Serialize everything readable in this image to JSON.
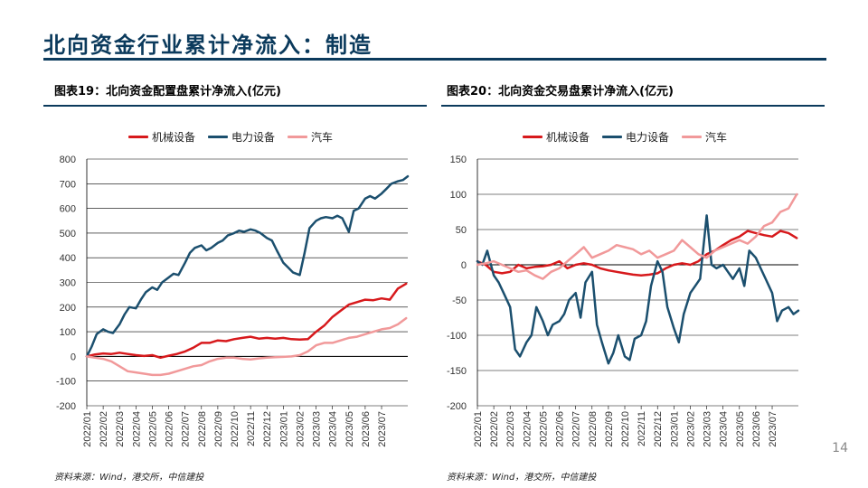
{
  "page": {
    "title": "北向资金行业累计净流入：制造",
    "page_number": "14"
  },
  "colors": {
    "theme_navy": "#0b3a5c",
    "series_red": "#d7191c",
    "series_navy": "#1b4f6e",
    "series_pink": "#f1999a"
  },
  "left": {
    "figure_title": "图表19：北向资金配置盘累计净流入(亿元)",
    "source": "资料来源：Wind，港交所，中信建投"
  },
  "right": {
    "figure_title": "图表20：北向资金交易盘累计净流入(亿元)",
    "source": "资料来源：Wind，港交所，中信建投"
  },
  "chart_data": [
    {
      "type": "line",
      "title": "图表19：北向资金配置盘累计净流入(亿元)",
      "xlabel": "",
      "ylabel": "",
      "ylim": [
        -200,
        800
      ],
      "yticks": [
        -200,
        -100,
        0,
        100,
        200,
        300,
        400,
        500,
        600,
        700,
        800
      ],
      "categories": [
        "2022/01",
        "2022/02",
        "2022/03",
        "2022/04",
        "2022/05",
        "2022/06",
        "2022/07",
        "2022/08",
        "2022/09",
        "2022/10",
        "2022/11",
        "2022/12",
        "2023/01",
        "2023/02",
        "2023/03",
        "2023/04",
        "2023/05",
        "2023/06",
        "2023/07"
      ],
      "x_range": [
        0,
        19.6
      ],
      "grid": "horizontal",
      "legend": "top",
      "series": [
        {
          "name": "机械设备",
          "color": "#d7191c",
          "x": [
            0,
            0.5,
            1,
            1.5,
            2,
            2.5,
            3,
            3.5,
            4,
            4.5,
            5,
            5.5,
            6,
            6.5,
            7,
            7.5,
            8,
            8.5,
            9,
            9.5,
            10,
            10.5,
            11,
            11.5,
            12,
            12.5,
            13,
            13.5,
            14,
            14.5,
            15,
            15.5,
            16,
            16.5,
            17,
            17.5,
            18,
            18.5,
            19,
            19.5
          ],
          "values": [
            0,
            8,
            12,
            10,
            15,
            10,
            5,
            2,
            5,
            -5,
            3,
            10,
            20,
            35,
            55,
            55,
            65,
            62,
            70,
            75,
            80,
            72,
            75,
            72,
            75,
            70,
            68,
            70,
            100,
            125,
            160,
            185,
            210,
            220,
            230,
            228,
            235,
            230,
            275,
            295
          ]
        },
        {
          "name": "电力设备",
          "color": "#1b4f6e",
          "x": [
            0,
            0.3,
            0.6,
            1,
            1.3,
            1.6,
            2,
            2.3,
            2.6,
            3,
            3.3,
            3.6,
            4,
            4.3,
            4.6,
            5,
            5.3,
            5.6,
            6,
            6.3,
            6.6,
            7,
            7.3,
            7.6,
            8,
            8.3,
            8.6,
            9,
            9.3,
            9.6,
            10,
            10.3,
            10.6,
            11,
            11.3,
            11.6,
            12,
            12.3,
            12.6,
            13,
            13.3,
            13.6,
            14,
            14.3,
            14.6,
            15,
            15.3,
            15.6,
            16,
            16.3,
            16.6,
            17,
            17.3,
            17.6,
            18,
            18.3,
            18.6,
            19,
            19.3,
            19.6
          ],
          "values": [
            0,
            40,
            90,
            110,
            100,
            95,
            130,
            170,
            200,
            195,
            230,
            260,
            280,
            270,
            300,
            320,
            335,
            330,
            380,
            420,
            440,
            450,
            430,
            440,
            460,
            470,
            490,
            500,
            510,
            505,
            515,
            510,
            500,
            480,
            470,
            430,
            380,
            360,
            340,
            330,
            420,
            520,
            550,
            560,
            565,
            560,
            570,
            560,
            505,
            590,
            600,
            640,
            650,
            640,
            660,
            680,
            700,
            710,
            715,
            730
          ]
        },
        {
          "name": "汽车",
          "color": "#f1999a",
          "x": [
            0,
            0.5,
            1,
            1.5,
            2,
            2.5,
            3,
            3.5,
            4,
            4.5,
            5,
            5.5,
            6,
            6.5,
            7,
            7.5,
            8,
            8.5,
            9,
            9.5,
            10,
            10.5,
            11,
            11.5,
            12,
            12.5,
            13,
            13.5,
            14,
            14.5,
            15,
            15.5,
            16,
            16.5,
            17,
            17.5,
            18,
            18.5,
            19,
            19.5
          ],
          "values": [
            0,
            -5,
            -10,
            -20,
            -40,
            -60,
            -65,
            -70,
            -75,
            -75,
            -70,
            -60,
            -50,
            -40,
            -35,
            -20,
            -10,
            -5,
            -5,
            -10,
            -12,
            -8,
            -5,
            -3,
            -2,
            0,
            5,
            20,
            45,
            55,
            55,
            65,
            75,
            80,
            90,
            100,
            110,
            115,
            130,
            155
          ]
        }
      ]
    },
    {
      "type": "line",
      "title": "图表20：北向资金交易盘累计净流入(亿元)",
      "xlabel": "",
      "ylabel": "",
      "ylim": [
        -200,
        150
      ],
      "yticks": [
        -200,
        -150,
        -100,
        -50,
        0,
        50,
        100,
        150
      ],
      "categories": [
        "2022/01",
        "2022/02",
        "2022/03",
        "2022/04",
        "2022/05",
        "2022/06",
        "2022/07",
        "2022/08",
        "2022/09",
        "2022/10",
        "2022/11",
        "2022/12",
        "2023/01",
        "2023/02",
        "2023/03",
        "2023/04",
        "2023/05",
        "2023/06",
        "2023/07"
      ],
      "x_range": [
        0,
        19.6
      ],
      "grid": "horizontal",
      "legend": "top",
      "series": [
        {
          "name": "机械设备",
          "color": "#d7191c",
          "x": [
            0,
            0.5,
            1,
            1.5,
            2,
            2.5,
            3,
            3.5,
            4,
            4.5,
            5,
            5.5,
            6,
            6.5,
            7,
            7.5,
            8,
            8.5,
            9,
            9.5,
            10,
            10.5,
            11,
            11.5,
            12,
            12.5,
            13,
            13.5,
            14,
            14.5,
            15,
            15.5,
            16,
            16.5,
            17,
            17.5,
            18,
            18.5,
            19,
            19.5
          ],
          "values": [
            5,
            0,
            -10,
            -12,
            -10,
            0,
            -5,
            -3,
            -2,
            0,
            5,
            -5,
            0,
            2,
            0,
            -5,
            -8,
            -10,
            -12,
            -14,
            -15,
            -14,
            -12,
            -5,
            0,
            2,
            0,
            5,
            15,
            20,
            28,
            35,
            40,
            48,
            45,
            42,
            40,
            48,
            45,
            38
          ]
        },
        {
          "name": "电力设备",
          "color": "#1b4f6e",
          "x": [
            0,
            0.3,
            0.6,
            1,
            1.3,
            1.6,
            2,
            2.3,
            2.6,
            3,
            3.3,
            3.6,
            4,
            4.3,
            4.6,
            5,
            5.3,
            5.6,
            6,
            6.3,
            6.6,
            7,
            7.3,
            7.6,
            8,
            8.3,
            8.6,
            9,
            9.3,
            9.6,
            10,
            10.3,
            10.6,
            11,
            11.3,
            11.6,
            12,
            12.3,
            12.6,
            13,
            13.3,
            13.6,
            14,
            14.3,
            14.6,
            15,
            15.3,
            15.6,
            16,
            16.3,
            16.6,
            17,
            17.3,
            17.6,
            18,
            18.3,
            18.6,
            19,
            19.3,
            19.6
          ],
          "values": [
            5,
            0,
            20,
            -15,
            -25,
            -40,
            -60,
            -120,
            -130,
            -110,
            -100,
            -60,
            -80,
            -100,
            -85,
            -80,
            -70,
            -50,
            -40,
            -75,
            -25,
            -10,
            -85,
            -110,
            -140,
            -125,
            -100,
            -130,
            -135,
            -105,
            -100,
            -80,
            -30,
            5,
            -10,
            -60,
            -90,
            -110,
            -70,
            -40,
            -30,
            -20,
            70,
            0,
            -5,
            0,
            -10,
            -20,
            -5,
            -30,
            20,
            10,
            -5,
            -20,
            -40,
            -80,
            -65,
            -60,
            -70,
            -65
          ]
        },
        {
          "name": "汽车",
          "color": "#f1999a",
          "x": [
            0,
            0.5,
            1,
            1.5,
            2,
            2.5,
            3,
            3.5,
            4,
            4.5,
            5,
            5.5,
            6,
            6.5,
            7,
            7.5,
            8,
            8.5,
            9,
            9.5,
            10,
            10.5,
            11,
            11.5,
            12,
            12.5,
            13,
            13.5,
            14,
            14.5,
            15,
            15.5,
            16,
            16.5,
            17,
            17.5,
            18,
            18.5,
            19,
            19.5
          ],
          "values": [
            0,
            2,
            5,
            0,
            -5,
            -10,
            -8,
            -15,
            -20,
            -10,
            -5,
            5,
            15,
            25,
            10,
            15,
            20,
            28,
            25,
            22,
            15,
            20,
            10,
            15,
            20,
            35,
            25,
            15,
            10,
            20,
            25,
            30,
            35,
            30,
            40,
            55,
            60,
            75,
            80,
            100
          ]
        }
      ]
    }
  ]
}
